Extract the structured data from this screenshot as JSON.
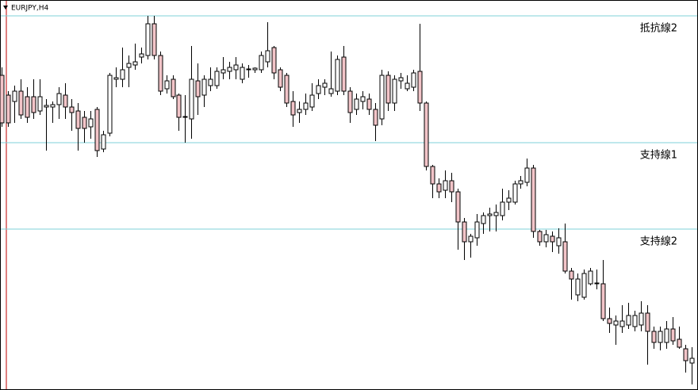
{
  "chart_data": {
    "type": "candlestick",
    "title": "EURJPY,H4",
    "ylim": [
      0,
      480
    ],
    "up_color": "#ffffff",
    "down_color": "#f2c4c8",
    "level_color": "#7fd0d8",
    "levels": [
      {
        "label": "抵抗線2",
        "value": 470
      },
      {
        "label": "支持線1",
        "value": 310
      },
      {
        "label": "支持線2",
        "value": 201
      }
    ],
    "open": [
      395,
      370,
      362,
      375,
      368,
      368,
      350,
      355,
      355,
      358,
      370,
      355,
      350,
      342,
      330,
      352,
      302,
      322,
      390,
      390,
      405,
      408,
      418,
      420,
      460,
      420,
      378,
      390,
      370,
      342,
      340,
      388,
      370,
      382,
      382,
      398,
      400,
      402,
      390,
      402,
      402,
      402,
      412,
      430,
      402,
      395,
      362,
      348,
      352,
      355,
      372,
      380,
      372,
      375,
      418,
      375,
      352,
      362,
      365,
      352,
      340,
      395,
      360,
      388,
      378,
      380,
      400,
      360,
      280,
      258,
      250,
      262,
      248,
      210,
      185,
      190,
      208,
      218,
      218,
      218,
      235,
      235,
      258,
      260,
      278,
      198,
      185,
      192,
      180,
      185,
      148,
      118,
      115,
      132,
      132,
      132,
      88,
      80,
      78,
      80,
      78,
      80,
      95,
      72,
      58,
      58,
      75,
      62,
      50,
      32
    ],
    "high": [
      405,
      375,
      382,
      390,
      380,
      390,
      390,
      365,
      362,
      380,
      385,
      365,
      360,
      350,
      350,
      355,
      325,
      398,
      405,
      430,
      420,
      435,
      430,
      470,
      470,
      425,
      395,
      395,
      372,
      370,
      432,
      410,
      395,
      405,
      405,
      418,
      412,
      418,
      410,
      408,
      405,
      425,
      462,
      432,
      405,
      398,
      375,
      362,
      372,
      385,
      390,
      390,
      425,
      420,
      432,
      380,
      372,
      375,
      372,
      360,
      402,
      400,
      395,
      398,
      395,
      402,
      460,
      362,
      282,
      265,
      275,
      272,
      252,
      215,
      195,
      220,
      222,
      228,
      232,
      252,
      250,
      262,
      268,
      290,
      282,
      200,
      200,
      198,
      202,
      208,
      152,
      145,
      150,
      152,
      150,
      162,
      102,
      92,
      105,
      108,
      98,
      110,
      105,
      78,
      78,
      85,
      90,
      78,
      55,
      52
    ],
    "low": [
      330,
      330,
      335,
      340,
      335,
      340,
      345,
      300,
      335,
      340,
      340,
      325,
      300,
      310,
      315,
      292,
      298,
      318,
      380,
      380,
      380,
      402,
      410,
      415,
      415,
      370,
      372,
      365,
      325,
      310,
      315,
      345,
      355,
      375,
      378,
      390,
      390,
      390,
      385,
      392,
      398,
      398,
      405,
      390,
      375,
      355,
      330,
      335,
      345,
      350,
      365,
      370,
      368,
      370,
      370,
      335,
      345,
      352,
      345,
      312,
      332,
      350,
      350,
      378,
      375,
      375,
      350,
      275,
      240,
      240,
      240,
      235,
      175,
      162,
      165,
      180,
      195,
      198,
      198,
      212,
      225,
      232,
      252,
      255,
      190,
      180,
      178,
      172,
      170,
      145,
      112,
      110,
      112,
      130,
      125,
      85,
      70,
      55,
      70,
      75,
      72,
      72,
      30,
      50,
      48,
      50,
      55,
      50,
      20,
      5
    ],
    "close": [
      335,
      335,
      375,
      345,
      342,
      348,
      368,
      357,
      358,
      372,
      355,
      348,
      328,
      328,
      340,
      300,
      320,
      395,
      392,
      402,
      410,
      412,
      422,
      460,
      420,
      375,
      388,
      368,
      342,
      343,
      390,
      368,
      390,
      390,
      400,
      402,
      405,
      408,
      405,
      403,
      404,
      420,
      426,
      398,
      380,
      360,
      345,
      352,
      360,
      370,
      382,
      385,
      378,
      415,
      375,
      348,
      365,
      368,
      352,
      332,
      395,
      360,
      390,
      392,
      385,
      398,
      360,
      280,
      258,
      248,
      262,
      248,
      210,
      185,
      192,
      210,
      218,
      220,
      222,
      235,
      240,
      258,
      262,
      278,
      198,
      185,
      194,
      185,
      190,
      148,
      138,
      138,
      145,
      148,
      133,
      88,
      82,
      85,
      85,
      92,
      92,
      95,
      72,
      58,
      72,
      75,
      60,
      52,
      35,
      38
    ]
  }
}
